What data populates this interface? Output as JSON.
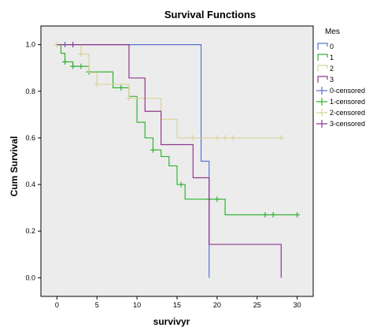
{
  "chart_data": {
    "type": "line",
    "title": "Survival Functions",
    "xlabel": "survivyr",
    "ylabel": "Cum Survival",
    "xlim": [
      -2,
      32
    ],
    "ylim": [
      -0.08,
      1.08
    ],
    "xticks": [
      0,
      5,
      10,
      15,
      20,
      25,
      30
    ],
    "yticks": [
      0.0,
      0.2,
      0.4,
      0.6,
      0.8,
      1.0
    ],
    "xtick_labels": [
      "0",
      "5",
      "10",
      "15",
      "20",
      "25",
      "30"
    ],
    "ytick_labels": [
      "0.0",
      "0.2",
      "0.4",
      "0.6",
      "0.8",
      "1.0"
    ],
    "grid": false,
    "background": "#ececec",
    "legend_title": "Mes",
    "legend_position": "right",
    "series": [
      {
        "name": "0",
        "color": "#5b73c9",
        "steps": [
          [
            0,
            1.0
          ],
          [
            18,
            0.5
          ],
          [
            19,
            0.0
          ]
        ],
        "end_x": 19,
        "censored": [
          [
            1,
            1.0
          ]
        ]
      },
      {
        "name": "1",
        "color": "#33b233",
        "steps": [
          [
            0,
            1.0
          ],
          [
            0.5,
            0.963
          ],
          [
            1,
            0.926
          ],
          [
            2,
            0.907
          ],
          [
            4,
            0.883
          ],
          [
            7,
            0.815
          ],
          [
            9,
            0.778
          ],
          [
            10,
            0.667
          ],
          [
            11,
            0.6
          ],
          [
            12,
            0.548
          ],
          [
            13,
            0.52
          ],
          [
            14,
            0.48
          ],
          [
            15,
            0.4
          ],
          [
            16,
            0.337
          ],
          [
            19,
            0.337
          ],
          [
            21,
            0.27
          ]
        ],
        "end_x": 30,
        "censored": [
          [
            1,
            0.926
          ],
          [
            2,
            0.907
          ],
          [
            3,
            0.907
          ],
          [
            4,
            0.883
          ],
          [
            8,
            0.815
          ],
          [
            12,
            0.548
          ],
          [
            15.5,
            0.4
          ],
          [
            19,
            0.337
          ],
          [
            20,
            0.337
          ],
          [
            26,
            0.27
          ],
          [
            27,
            0.27
          ],
          [
            30,
            0.27
          ]
        ]
      },
      {
        "name": "2",
        "color": "#d9d39a",
        "steps": [
          [
            0,
            1.0
          ],
          [
            3,
            0.96
          ],
          [
            4,
            0.88
          ],
          [
            5,
            0.83
          ],
          [
            9,
            0.77
          ],
          [
            13,
            0.68
          ],
          [
            15,
            0.6
          ]
        ],
        "end_x": 28,
        "censored": [
          [
            0,
            1.0
          ],
          [
            3,
            0.96
          ],
          [
            5,
            0.83
          ],
          [
            9,
            0.77
          ],
          [
            17,
            0.6
          ],
          [
            20,
            0.6
          ],
          [
            21,
            0.6
          ],
          [
            22,
            0.6
          ],
          [
            28,
            0.6
          ]
        ]
      },
      {
        "name": "3",
        "color": "#8c3a8c",
        "steps": [
          [
            0,
            1.0
          ],
          [
            9,
            0.857
          ],
          [
            11,
            0.714
          ],
          [
            13,
            0.571
          ],
          [
            17,
            0.429
          ],
          [
            19,
            0.143
          ],
          [
            28,
            0.0
          ]
        ],
        "end_x": 28,
        "censored": [
          [
            2,
            1.0
          ]
        ]
      }
    ],
    "legend_entries": [
      {
        "label": "0",
        "color": "#5b73c9",
        "kind": "line"
      },
      {
        "label": "1",
        "color": "#33b233",
        "kind": "line"
      },
      {
        "label": "2",
        "color": "#d9d39a",
        "kind": "line"
      },
      {
        "label": "3",
        "color": "#8c3a8c",
        "kind": "line"
      },
      {
        "label": "0-censored",
        "color": "#5b73c9",
        "kind": "cross"
      },
      {
        "label": "1-censored",
        "color": "#33b233",
        "kind": "cross"
      },
      {
        "label": "2-censored",
        "color": "#d9d39a",
        "kind": "cross"
      },
      {
        "label": "3-censored",
        "color": "#8c3a8c",
        "kind": "cross"
      }
    ]
  }
}
